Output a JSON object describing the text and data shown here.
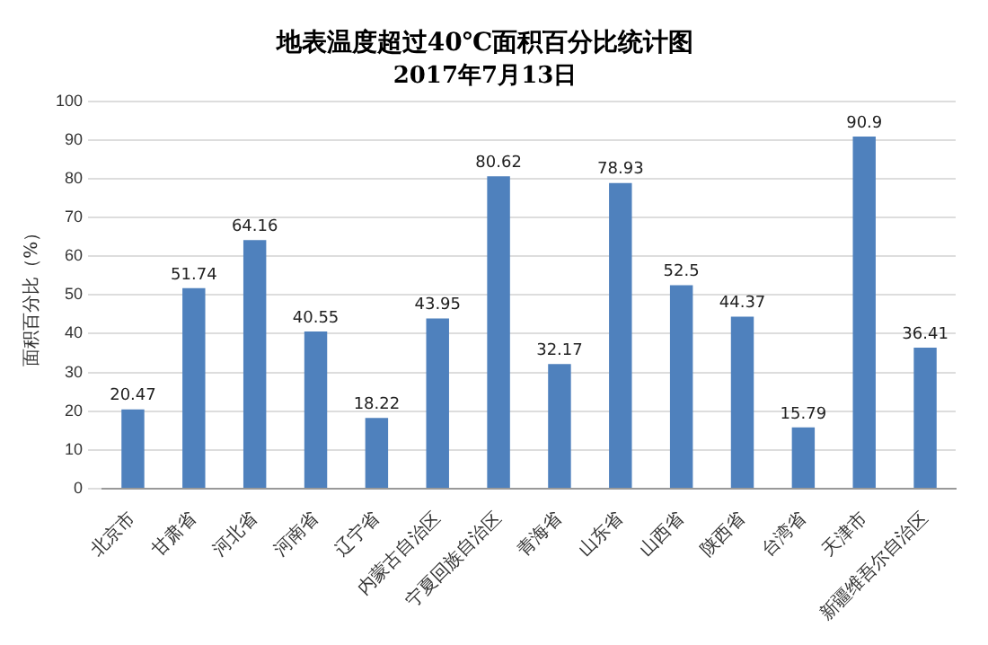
{
  "chart_data": {
    "type": "bar",
    "title": "地表温度超过40℃面积百分比统计图",
    "subtitle": "2017年7月13日",
    "ylabel": "面积百分比（%）",
    "categories": [
      "北京市",
      "甘肃省",
      "河北省",
      "河南省",
      "辽宁省",
      "内蒙古自治区",
      "宁夏回族自治区",
      "青海省",
      "山东省",
      "山西省",
      "陕西省",
      "台湾省",
      "天津市",
      "新疆维吾尔自治区"
    ],
    "values": [
      20.47,
      51.74,
      64.16,
      40.55,
      18.22,
      43.95,
      80.62,
      32.17,
      78.93,
      52.5,
      44.37,
      15.79,
      90.9,
      36.41
    ],
    "color": "#4f81bd",
    "ylim": [
      0,
      100
    ],
    "yticks": [
      0,
      10,
      20,
      30,
      40,
      50,
      60,
      70,
      80,
      90,
      100
    ],
    "grid": "y",
    "data_labels": true,
    "legend": false
  }
}
